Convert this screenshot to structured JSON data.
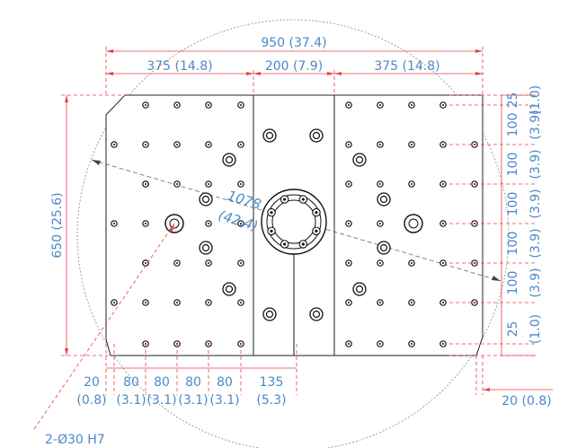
{
  "dimensions": {
    "overall_width": "950 (37.4)",
    "left_width": "375 (14.8)",
    "center_width": "200 (7.9)",
    "right_width": "375 (14.8)",
    "height": "650 (25.6)",
    "diagonal_value": "1078",
    "diagonal_inch": "(42.4)",
    "right_pitches": [
      {
        "mm": "25",
        "inch": "(1.0)"
      },
      {
        "mm": "100",
        "inch": "(3.9)"
      },
      {
        "mm": "100",
        "inch": "(3.9)"
      },
      {
        "mm": "100",
        "inch": "(3.9)"
      },
      {
        "mm": "100",
        "inch": "(3.9)"
      },
      {
        "mm": "100",
        "inch": "(3.9)"
      },
      {
        "mm": "25",
        "inch": "(1.0)"
      }
    ],
    "bottom_pitches": [
      {
        "mm": "20",
        "inch": "(0.8)"
      },
      {
        "mm": "80",
        "inch": "(3.1)"
      },
      {
        "mm": "80",
        "inch": "(3.1)"
      },
      {
        "mm": "80",
        "inch": "(3.1)"
      },
      {
        "mm": "80",
        "inch": "(3.1)"
      },
      {
        "mm": "135",
        "inch": "(5.3)"
      }
    ],
    "right_edge": "20 (0.8)",
    "hole_callout": "2-Ø30  H7"
  }
}
